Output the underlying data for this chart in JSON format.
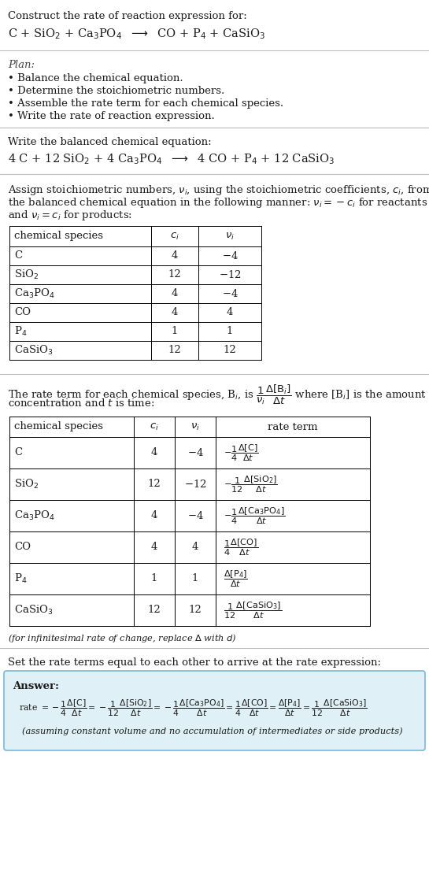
{
  "bg_color": "#ffffff",
  "title_line1": "Construct the rate of reaction expression for:",
  "reaction_unbalanced": "C + SiO$_2$ + Ca$_3$PO$_4$  $\\longrightarrow$  CO + P$_4$ + CaSiO$_3$",
  "plan_title": "Plan:",
  "plan_items": [
    "Balance the chemical equation.",
    "Determine the stoichiometric numbers.",
    "Assemble the rate term for each chemical species.",
    "Write the rate of reaction expression."
  ],
  "balanced_label": "Write the balanced chemical equation:",
  "reaction_balanced": "4 C + 12 SiO$_2$ + 4 Ca$_3$PO$_4$  $\\longrightarrow$  4 CO + P$_4$ + 12 CaSiO$_3$",
  "stoich_intro_lines": [
    "Assign stoichiometric numbers, $\\nu_i$, using the stoichiometric coefficients, $c_i$, from",
    "the balanced chemical equation in the following manner: $\\nu_i = -c_i$ for reactants",
    "and $\\nu_i = c_i$ for products:"
  ],
  "table1_headers": [
    "chemical species",
    "$c_i$",
    "$\\nu_i$"
  ],
  "table1_rows": [
    [
      "C",
      "4",
      "$-$4"
    ],
    [
      "SiO$_2$",
      "12",
      "$-$12"
    ],
    [
      "Ca$_3$PO$_4$",
      "4",
      "$-$4"
    ],
    [
      "CO",
      "4",
      "4"
    ],
    [
      "P$_4$",
      "1",
      "1"
    ],
    [
      "CaSiO$_3$",
      "12",
      "12"
    ]
  ],
  "rate_intro_lines": [
    "The rate term for each chemical species, B$_i$, is $\\dfrac{1}{\\nu_i}\\dfrac{\\Delta[\\mathrm{B}_i]}{\\Delta t}$ where [B$_i$] is the amount",
    "concentration and $t$ is time:"
  ],
  "table2_headers": [
    "chemical species",
    "$c_i$",
    "$\\nu_i$",
    "rate term"
  ],
  "table2_rows": [
    [
      "C",
      "4",
      "$-$4",
      "$-\\dfrac{1}{4}\\dfrac{\\Delta[\\mathrm{C}]}{\\Delta t}$"
    ],
    [
      "SiO$_2$",
      "12",
      "$-$12",
      "$-\\dfrac{1}{12}\\dfrac{\\Delta[\\mathrm{SiO_2}]}{\\Delta t}$"
    ],
    [
      "Ca$_3$PO$_4$",
      "4",
      "$-$4",
      "$-\\dfrac{1}{4}\\dfrac{\\Delta[\\mathrm{Ca_3PO_4}]}{\\Delta t}$"
    ],
    [
      "CO",
      "4",
      "4",
      "$\\dfrac{1}{4}\\dfrac{\\Delta[\\mathrm{CO}]}{\\Delta t}$"
    ],
    [
      "P$_4$",
      "1",
      "1",
      "$\\dfrac{\\Delta[\\mathrm{P_4}]}{\\Delta t}$"
    ],
    [
      "CaSiO$_3$",
      "12",
      "12",
      "$\\dfrac{1}{12}\\dfrac{\\Delta[\\mathrm{CaSiO_3}]}{\\Delta t}$"
    ]
  ],
  "infinitesimal_note": "(for infinitesimal rate of change, replace $\\Delta$ with $d$)",
  "set_equal_text": "Set the rate terms equal to each other to arrive at the rate expression:",
  "answer_label": "Answer:",
  "answer_box_color": "#dff0f7",
  "answer_box_border": "#7ab8d4",
  "rate_expression": "rate $= -\\dfrac{1}{4}\\dfrac{\\Delta[\\mathrm{C}]}{\\Delta t} = -\\dfrac{1}{12}\\dfrac{\\Delta[\\mathrm{SiO_2}]}{\\Delta t} = -\\dfrac{1}{4}\\dfrac{\\Delta[\\mathrm{Ca_3PO_4}]}{\\Delta t} = \\dfrac{1}{4}\\dfrac{\\Delta[\\mathrm{CO}]}{\\Delta t} = \\dfrac{\\Delta[\\mathrm{P_4}]}{\\Delta t} = \\dfrac{1}{12}\\dfrac{\\Delta[\\mathrm{CaSiO_3}]}{\\Delta t}$",
  "assuming_note": "(assuming constant volume and no accumulation of intermediates or side products)"
}
